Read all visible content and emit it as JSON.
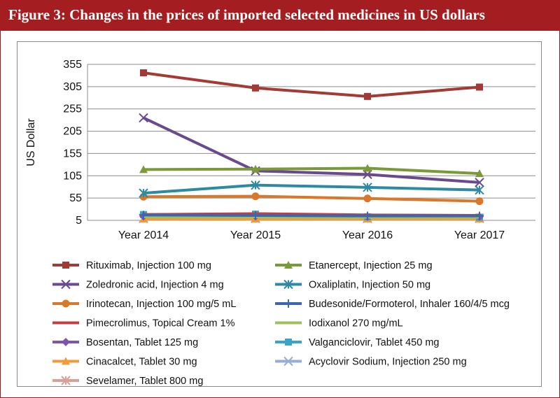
{
  "header": {
    "title": "Figure 3: Changes in the prices of imported selected medicines in US dollars"
  },
  "colors": {
    "header_bg": "#a31d21",
    "grid": "#8c8c8c"
  },
  "chart_data": {
    "type": "line",
    "title": "",
    "xlabel": "",
    "ylabel": "US Dollar",
    "categories": [
      "Year 2014",
      "Year 2015",
      "Year 2016",
      "Year 2017"
    ],
    "yticks": [
      5,
      55,
      105,
      155,
      205,
      255,
      305,
      355
    ],
    "ylim": [
      5,
      355
    ],
    "grid": "horizontal",
    "legend_position": "bottom",
    "series": [
      {
        "name": "Rituximab, Injection 100 mg",
        "color": "#a33a35",
        "marker": "square",
        "values": [
          336,
          302,
          283,
          304
        ]
      },
      {
        "name": "Etanercept, Injection 25 mg",
        "color": "#7a9a3a",
        "marker": "triangle",
        "values": [
          119,
          120,
          122,
          110
        ]
      },
      {
        "name": "Zoledronic acid, Injection 4 mg",
        "color": "#6a4a8c",
        "marker": "x",
        "values": [
          235,
          116,
          108,
          90
        ]
      },
      {
        "name": "Oxaliplatin, Injection 50 mg",
        "color": "#2d8aa0",
        "marker": "asterisk",
        "values": [
          66,
          84,
          79,
          73
        ]
      },
      {
        "name": "Irinotecan, Injection 100 mg/5 mL",
        "color": "#d9772a",
        "marker": "circle",
        "values": [
          58,
          59,
          54,
          48
        ]
      },
      {
        "name": "Budesonide/Formoterol, Inhaler 160/4/5 mcg",
        "color": "#3d66b0",
        "marker": "plus",
        "values": [
          17,
          16,
          15,
          15
        ]
      },
      {
        "name": "Pimecrolimus, Topical Cream 1%",
        "color": "#cc3b3b",
        "marker": "none",
        "values": [
          18,
          20,
          17,
          16
        ]
      },
      {
        "name": "Iodixanol 270 mg/mL",
        "color": "#9bc35a",
        "marker": "none",
        "values": [
          13,
          13,
          12,
          12
        ]
      },
      {
        "name": "Bosentan, Tablet 125 mg",
        "color": "#7e55a8",
        "marker": "diamond",
        "values": [
          14,
          14,
          13,
          13
        ]
      },
      {
        "name": "Valganciclovir, Tablet 450 mg",
        "color": "#3aa3c8",
        "marker": "square",
        "values": [
          18,
          19,
          13,
          12
        ]
      },
      {
        "name": "Cinacalcet, Tablet 30 mg",
        "color": "#f09a3a",
        "marker": "triangle",
        "values": [
          8,
          8,
          8,
          8
        ]
      },
      {
        "name": "Acyclovir Sodium, Injection 250 mg",
        "color": "#98acd4",
        "marker": "x",
        "values": [
          10,
          10,
          10,
          10
        ]
      },
      {
        "name": "Sevelamer, Tablet 800 mg",
        "color": "#d9a09a",
        "marker": "asterisk",
        "values": [
          9,
          9,
          9,
          9
        ]
      }
    ]
  }
}
